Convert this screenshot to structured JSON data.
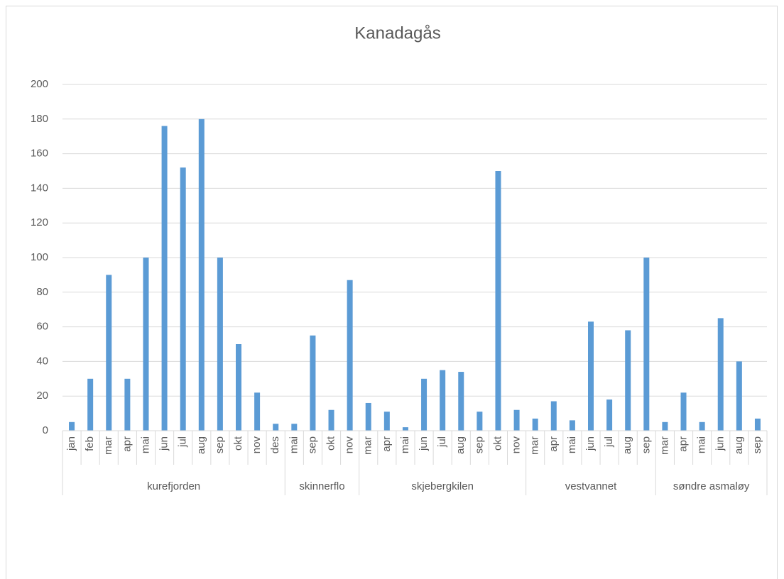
{
  "chart_data": {
    "type": "bar",
    "title": "Kanadagås",
    "color": "#5b9bd5",
    "grid": true,
    "ylim": [
      0,
      200
    ],
    "yticks": [
      0,
      20,
      40,
      60,
      80,
      100,
      120,
      140,
      160,
      180,
      200
    ],
    "groups": [
      {
        "name": "kurefjorden",
        "categories": [
          "jan",
          "feb",
          "mar",
          "apr",
          "mai",
          "jun",
          "jul",
          "aug",
          "sep",
          "okt",
          "nov",
          "des"
        ],
        "values": [
          5,
          30,
          90,
          30,
          100,
          176,
          152,
          180,
          100,
          50,
          22,
          4
        ]
      },
      {
        "name": "skinnerflo",
        "categories": [
          "mai",
          "sep",
          "okt",
          "nov"
        ],
        "values": [
          4,
          55,
          12,
          87
        ]
      },
      {
        "name": "skjebergkilen",
        "categories": [
          "mar",
          "apr",
          "mai",
          "jun",
          "jul",
          "aug",
          "sep",
          "okt",
          "nov"
        ],
        "values": [
          16,
          11,
          2,
          30,
          35,
          34,
          11,
          150,
          12
        ]
      },
      {
        "name": "vestvannet",
        "categories": [
          "mar",
          "apr",
          "mai",
          "jun",
          "jul",
          "aug",
          "sep"
        ],
        "values": [
          7,
          17,
          6,
          63,
          18,
          58,
          100
        ]
      },
      {
        "name": "søndre asmaløy",
        "categories": [
          "mar",
          "apr",
          "mai",
          "jun",
          "aug",
          "sep"
        ],
        "values": [
          5,
          22,
          5,
          65,
          40,
          7
        ]
      }
    ]
  }
}
